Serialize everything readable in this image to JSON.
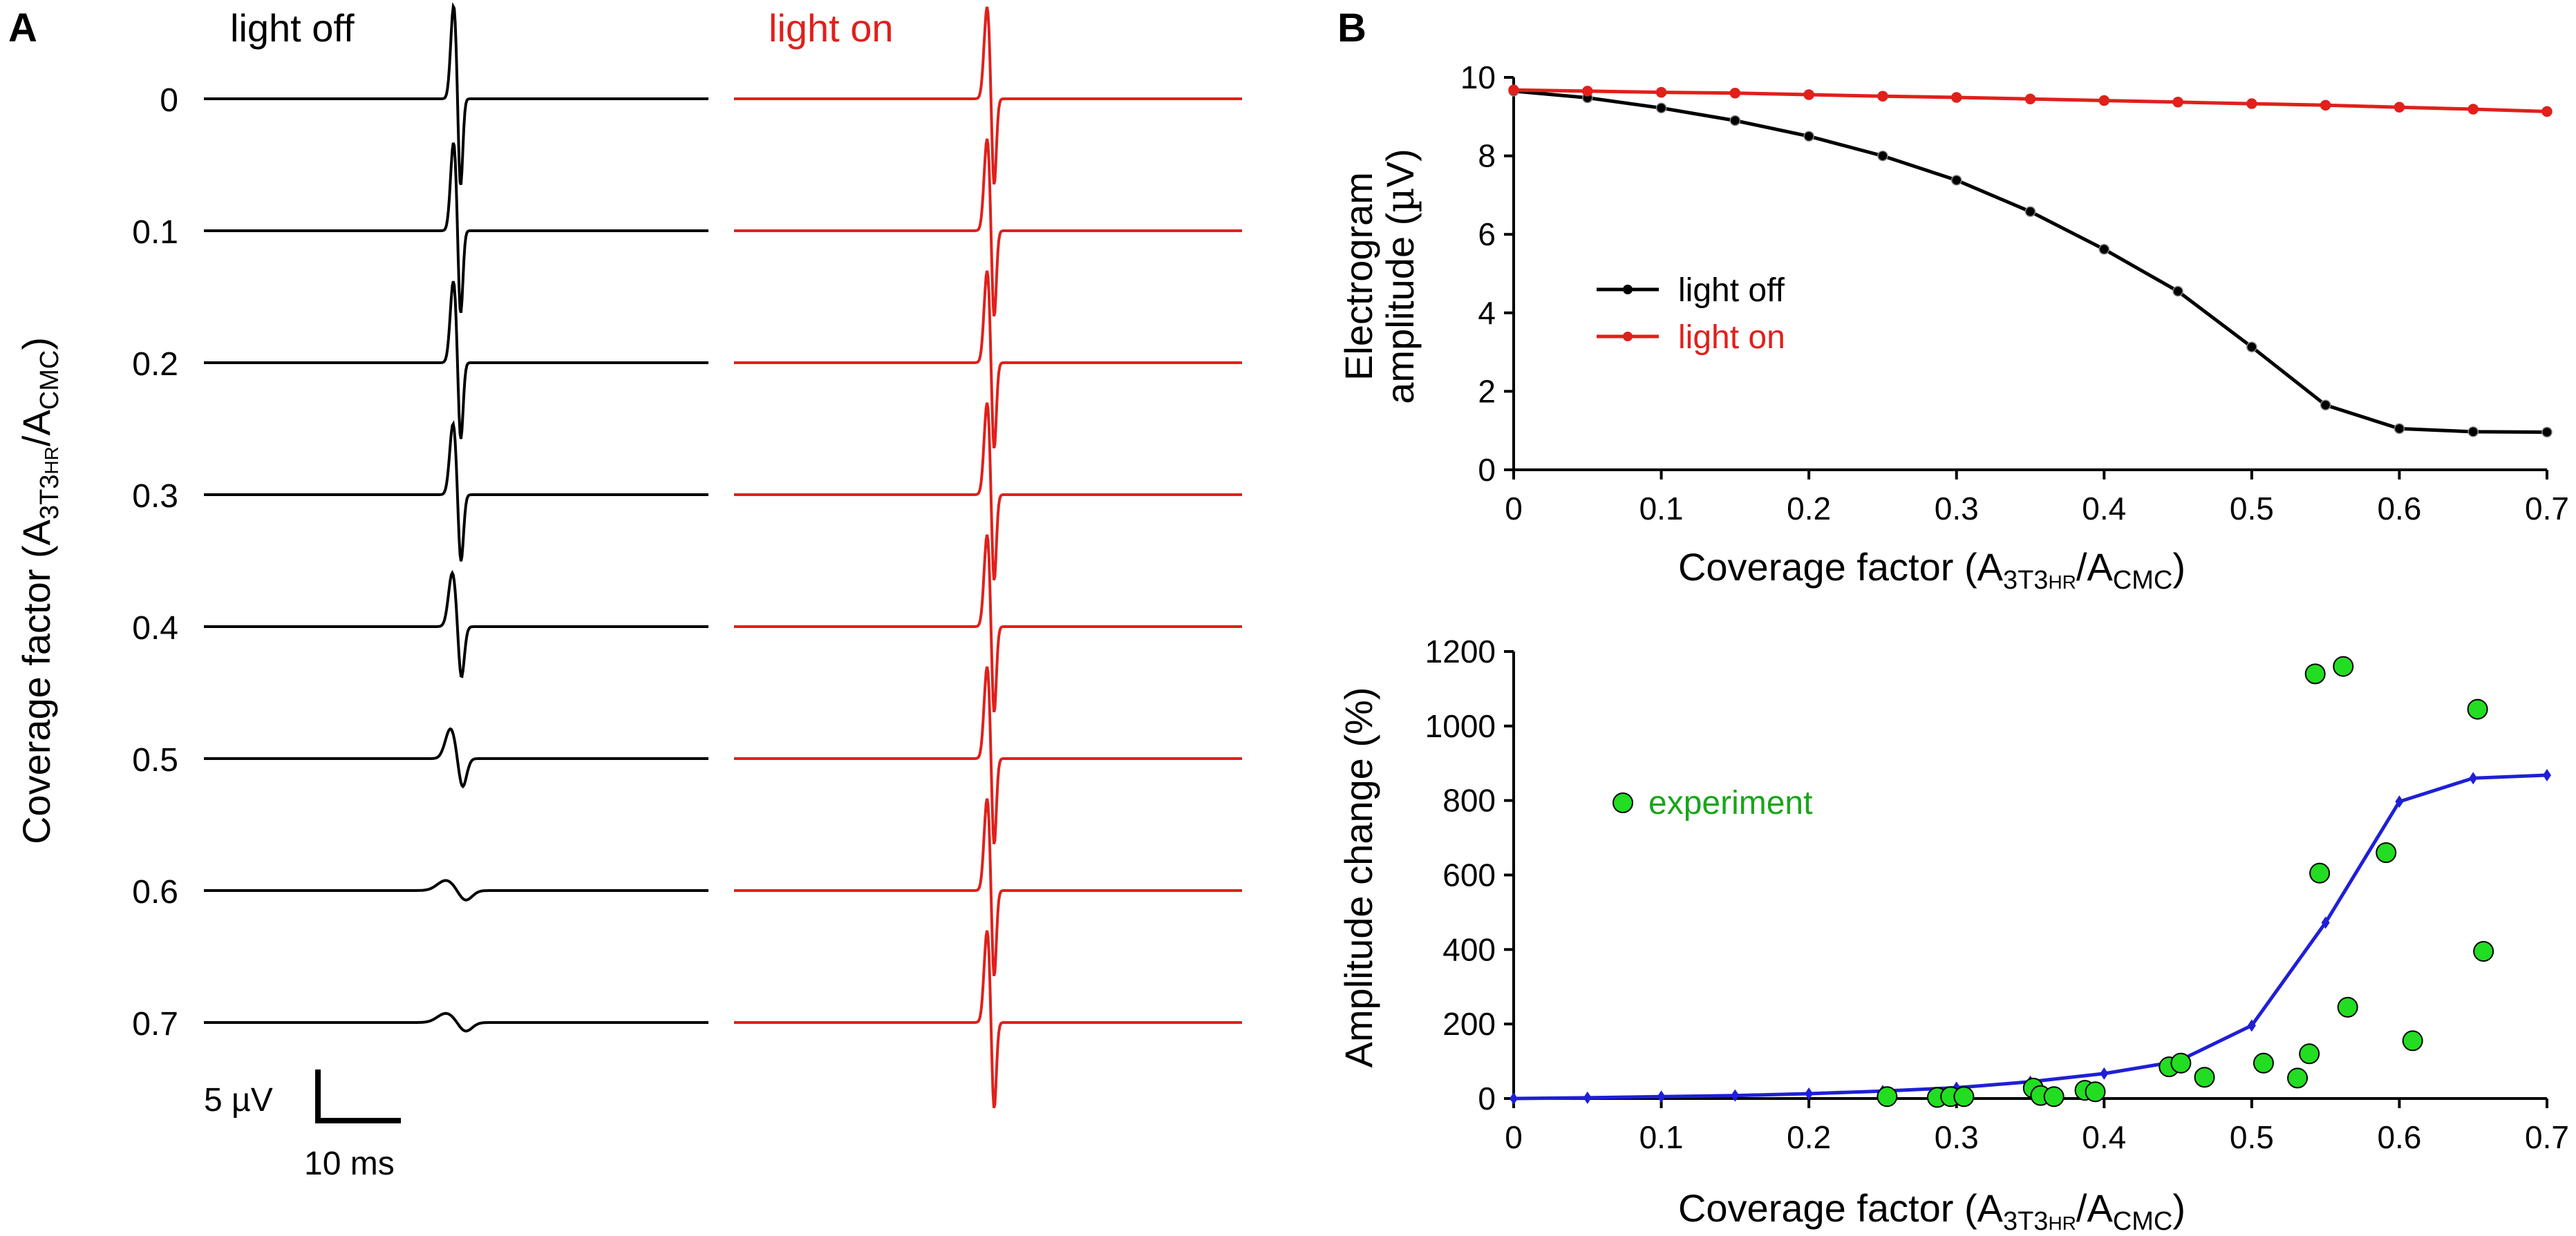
{
  "panel_labels": {
    "a": "A",
    "b": "B"
  },
  "colors": {
    "light_off": "#000000",
    "light_on": "#e0201b",
    "model": "#1f1fd6",
    "experiment": "#22dd22",
    "experiment_text": "#1aa51a"
  },
  "panel_a": {
    "col_off_label": "light off",
    "col_on_label": "light on",
    "ylabel": "Coverage factor (A3T3HR/ACMC)",
    "ylabel_main": "Coverage factor (A",
    "ylabel_sub1": "3T3",
    "ylabel_sub1b": "HR",
    "ylabel_mid": "/A",
    "ylabel_sub2": "CMC",
    "ylabel_end": ")",
    "rows": [
      "0",
      "0.1",
      "0.2",
      "0.3",
      "0.4",
      "0.5",
      "0.6",
      "0.7"
    ],
    "off_amplitudes_uV": [
      9.7,
      9.2,
      8.5,
      7.4,
      5.6,
      3.1,
      1.05,
      0.95
    ],
    "on_amplitude_uV": 9.6,
    "scalebar": {
      "voltage_label": "5 µV",
      "time_label": "10 ms",
      "voltage_uV": 5,
      "time_ms": 10
    }
  },
  "chart_data": [
    {
      "type": "line",
      "id": "amplitude",
      "xlabel": "Coverage factor (A3T3HR/ACMC)",
      "ylabel": "Electrogram amplitude (µV)",
      "ylabel_line1": "Electrogram",
      "ylabel_line2": "amplitude (",
      "ylabel_mu": "µ",
      "ylabel_unit": "V)",
      "xlim": [
        0,
        0.7
      ],
      "ylim": [
        0,
        10
      ],
      "xticks": [
        "0",
        "0.1",
        "0.2",
        "0.3",
        "0.4",
        "0.5",
        "0.6",
        "0.7"
      ],
      "yticks": [
        "0",
        "2",
        "4",
        "6",
        "8",
        "10"
      ],
      "x": [
        0,
        0.05,
        0.1,
        0.15,
        0.2,
        0.25,
        0.3,
        0.35,
        0.4,
        0.45,
        0.5,
        0.55,
        0.6,
        0.65,
        0.7
      ],
      "series": [
        {
          "name": "light off",
          "values": [
            9.65,
            9.48,
            9.22,
            8.9,
            8.5,
            8.0,
            7.38,
            6.58,
            5.62,
            4.55,
            3.13,
            1.65,
            1.05,
            0.97,
            0.96
          ]
        },
        {
          "name": "light on",
          "values": [
            9.68,
            9.65,
            9.62,
            9.6,
            9.56,
            9.52,
            9.49,
            9.45,
            9.41,
            9.37,
            9.33,
            9.29,
            9.24,
            9.19,
            9.13
          ]
        }
      ],
      "legend": "center-left"
    },
    {
      "type": "line+scatter",
      "id": "change",
      "xlabel": "Coverage factor (A3T3HR/ACMC)",
      "ylabel": "Amplitude change (%)",
      "xlim": [
        0,
        0.7
      ],
      "ylim": [
        0,
        1200
      ],
      "xticks": [
        "0",
        "0.1",
        "0.2",
        "0.3",
        "0.4",
        "0.5",
        "0.6",
        "0.7"
      ],
      "yticks": [
        "0",
        "200",
        "400",
        "600",
        "800",
        "1000",
        "1200"
      ],
      "model": {
        "x": [
          0,
          0.05,
          0.1,
          0.15,
          0.2,
          0.25,
          0.3,
          0.35,
          0.4,
          0.45,
          0.5,
          0.55,
          0.6,
          0.65,
          0.7
        ],
        "values": [
          0,
          2,
          5,
          8,
          13,
          20,
          29,
          45,
          67,
          100,
          196,
          472,
          797,
          860,
          868
        ]
      },
      "experiment": {
        "name": "experiment",
        "x": [
          0.253,
          0.287,
          0.296,
          0.305,
          0.352,
          0.357,
          0.366,
          0.387,
          0.394,
          0.444,
          0.452,
          0.468,
          0.508,
          0.531,
          0.539,
          0.543,
          0.546,
          0.562,
          0.565,
          0.591,
          0.609,
          0.653,
          0.657
        ],
        "y": [
          5,
          3,
          5,
          5,
          28,
          8,
          5,
          22,
          18,
          85,
          95,
          57,
          95,
          55,
          120,
          1140,
          605,
          1160,
          245,
          660,
          155,
          1045,
          395
        ]
      },
      "legend": "left"
    }
  ]
}
